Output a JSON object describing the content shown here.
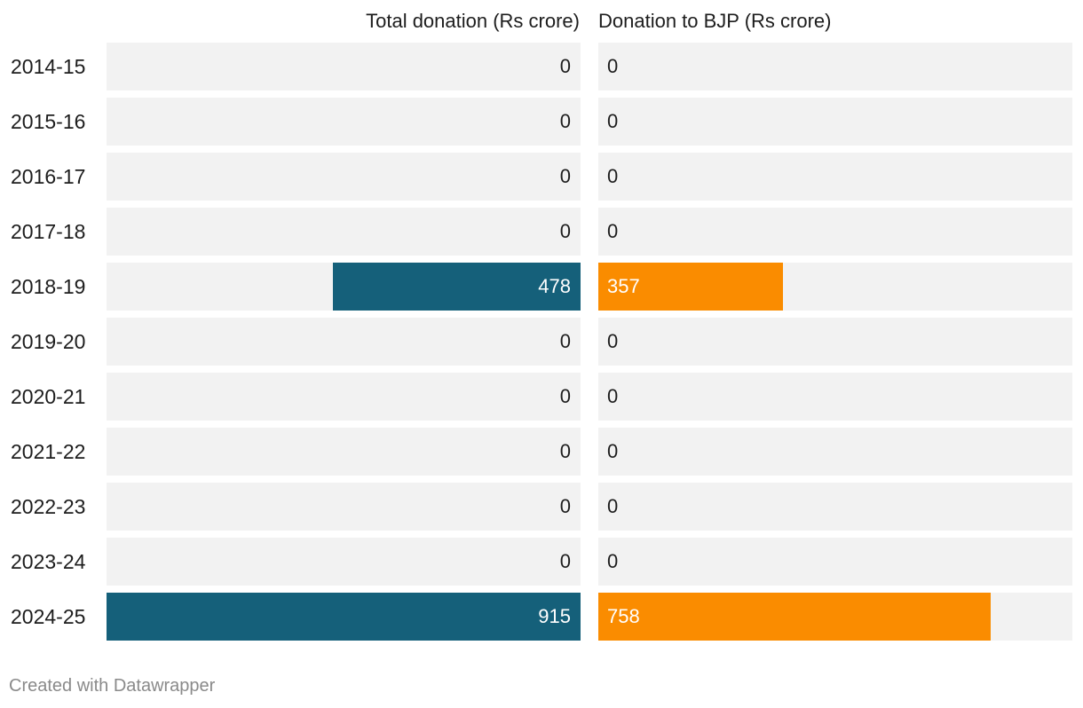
{
  "chart_data": {
    "type": "bar",
    "orientation": "horizontal",
    "layout": "split-bars",
    "categories": [
      "2014-15",
      "2015-16",
      "2016-17",
      "2017-18",
      "2018-19",
      "2019-20",
      "2020-21",
      "2021-22",
      "2022-23",
      "2023-24",
      "2024-25"
    ],
    "series": [
      {
        "name": "Total donation (Rs crore)",
        "color": "#15607a",
        "values": [
          0,
          0,
          0,
          0,
          478,
          0,
          0,
          0,
          0,
          0,
          915
        ]
      },
      {
        "name": "Donation to BJP (Rs crore)",
        "color": "#fa8c00",
        "values": [
          0,
          0,
          0,
          0,
          357,
          0,
          0,
          0,
          0,
          0,
          758
        ]
      }
    ],
    "xlim": [
      0,
      915
    ],
    "grid": false,
    "legend": "column-headers"
  },
  "credit": "Created with Datawrapper"
}
